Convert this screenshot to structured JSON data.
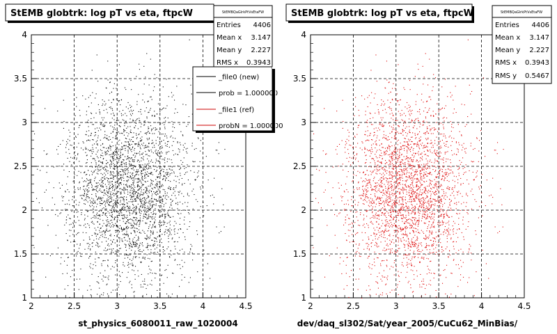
{
  "chart_data": [
    {
      "type": "scatter",
      "title": "StEMB globtrk: log pT vs eta, ftpcW",
      "xlabel": "st_physics_6080011_raw_1020004",
      "xlim": [
        2,
        4.5
      ],
      "ylim": [
        1,
        4
      ],
      "xticks": [
        "2",
        "2.5",
        "3",
        "3.5",
        "4",
        "4.5"
      ],
      "yticks": [
        "1",
        "1.5",
        "2",
        "2.5",
        "3",
        "3.5",
        "4"
      ],
      "grid": true,
      "color": "#000000",
      "series_points": 3000,
      "distribution": {
        "x_center": 3.147,
        "y_center": 2.227,
        "x_rms": 0.3943,
        "y_rms": 0.5467
      },
      "stats": {
        "name": "StEMBQaGlrkPtVsEtaFW",
        "rows": [
          {
            "label": "Entries",
            "value": "4406"
          },
          {
            "label": "Mean x",
            "value": "3.147"
          },
          {
            "label": "Mean y",
            "value": "2.227"
          },
          {
            "label": "RMS x",
            "value": "0.3943"
          }
        ]
      },
      "legend": {
        "position": "top-right",
        "entries": [
          {
            "label": "_file0 (new)",
            "color": "#000000"
          },
          {
            "label": "prob = 1.000000",
            "color": "#000000"
          },
          {
            "label": "_file1 (ref)",
            "color": "#cc0000"
          },
          {
            "label": "probN = 1.000000",
            "color": "#cc0000"
          }
        ]
      }
    },
    {
      "type": "scatter",
      "title": "StEMB globtrk: log pT vs eta, ftpcW",
      "xlabel": "dev/daq_sl302/Sat/year_2005/CuCu62_MinBias/",
      "xlim": [
        2,
        4.5
      ],
      "ylim": [
        1,
        4
      ],
      "xticks": [
        "2",
        "2.5",
        "3",
        "3.5",
        "4",
        "4.5"
      ],
      "yticks": [
        "1",
        "1.5",
        "2",
        "2.5",
        "3",
        "3.5",
        "4"
      ],
      "grid": true,
      "color": "#dd0000",
      "series_points": 3000,
      "distribution": {
        "x_center": 3.147,
        "y_center": 2.227,
        "x_rms": 0.3943,
        "y_rms": 0.5467
      },
      "stats": {
        "name": "StEMBQaGlrkPtVsEtaFW",
        "rows": [
          {
            "label": "Entries",
            "value": "4406"
          },
          {
            "label": "Mean x",
            "value": "3.147"
          },
          {
            "label": "Mean y",
            "value": "2.227"
          },
          {
            "label": "RMS x",
            "value": "0.3943"
          },
          {
            "label": "RMS y",
            "value": "0.5467"
          }
        ]
      }
    }
  ]
}
